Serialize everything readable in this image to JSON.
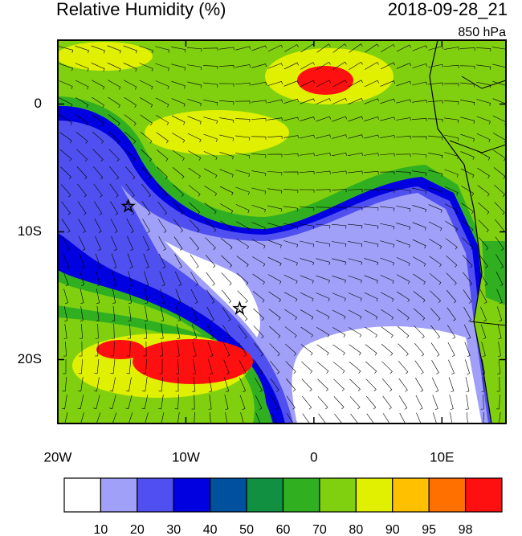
{
  "chart_data": {
    "type": "contour",
    "title": "Relative Humidity (%)",
    "time": "2018-09-28_21",
    "level": "850 hPa",
    "xlim": [
      -20,
      15
    ],
    "ylim": [
      -25,
      5
    ],
    "xticks": [
      {
        "value": -20,
        "label": "20W"
      },
      {
        "value": -10,
        "label": "10W"
      },
      0,
      {
        "value": 10,
        "label": "10E"
      }
    ],
    "yticks": [
      0,
      {
        "value": -10,
        "label": "10S"
      },
      {
        "value": -20,
        "label": "20S"
      }
    ],
    "markers": {
      "x": [
        -14.5,
        -5.8
      ],
      "y": [
        -8,
        -16
      ]
    },
    "colorbar": {
      "levels": [
        10,
        20,
        30,
        40,
        50,
        60,
        70,
        80,
        90,
        95,
        98
      ],
      "colors": [
        "#ffffff",
        "#a0a0f8",
        "#5050f0",
        "#0000e0",
        "#0050a0",
        "#109040",
        "#30b020",
        "#80d010",
        "#e0f000",
        "#ffc000",
        "#ff7000",
        "#ff1010"
      ]
    }
  }
}
